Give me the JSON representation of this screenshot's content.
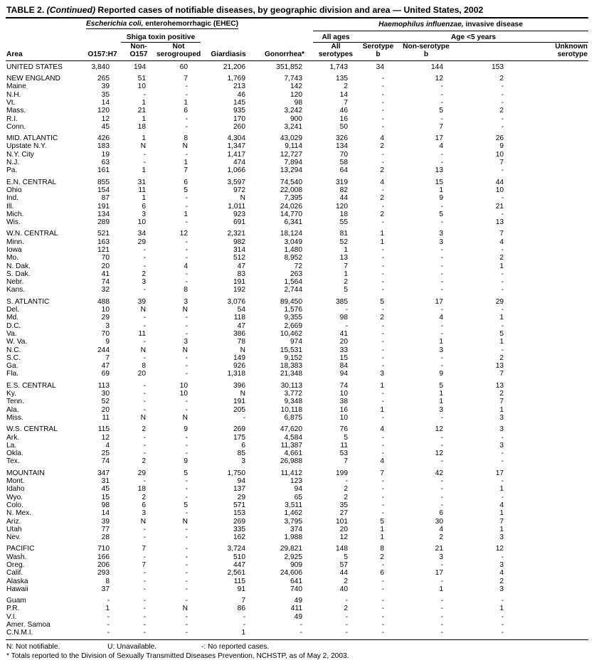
{
  "title": {
    "table_label": "TABLE 2.",
    "continued": " (Continued) ",
    "text": "Reported cases of notifiable diseases, by geographic division and area — United States, 2002"
  },
  "header": {
    "area": "Area",
    "ehec_group_italic": "Escherichia coli,",
    "ehec_group_rest": " enterohemorrhagic (EHEC)",
    "hinf_group_italic": "Haemophilus influenzae,",
    "hinf_group_rest": " invasive disease",
    "shiga": "Shiga toxin positive",
    "all_ages": "All ages",
    "age_under5": "Age <5 years",
    "cols": {
      "o157": "O157:H7",
      "non_o157": "Non-\nO157",
      "not_serogrouped": "Not\nserogrouped",
      "giardiasis": "Giardiasis",
      "gonorrhea": "Gonorrhea*",
      "all_serotypes": "All\nserotypes",
      "serotype_b": "Serotype\nb",
      "non_serotype_b": "Non-serotype\nb",
      "unknown_serotype": "Unknown\nserotype"
    }
  },
  "table": {
    "groups": [
      {
        "rows": [
          {
            "area": "UNITED STATES",
            "values": [
              "3,840",
              "194",
              "60",
              "21,206",
              "351,852",
              "1,743",
              "34",
              "144",
              "153"
            ]
          }
        ]
      },
      {
        "rows": [
          {
            "area": "NEW ENGLAND",
            "values": [
              "265",
              "51",
              "7",
              "1,769",
              "7,743",
              "135",
              "-",
              "12",
              "2"
            ]
          },
          {
            "area": "Maine",
            "values": [
              "39",
              "10",
              "-",
              "213",
              "142",
              "2",
              "-",
              "-",
              "-"
            ]
          },
          {
            "area": "N.H.",
            "values": [
              "35",
              "-",
              "-",
              "46",
              "120",
              "14",
              "-",
              "-",
              "-"
            ]
          },
          {
            "area": "Vt.",
            "values": [
              "14",
              "1",
              "1",
              "145",
              "98",
              "7",
              "-",
              "-",
              "-"
            ]
          },
          {
            "area": "Mass.",
            "values": [
              "120",
              "21",
              "6",
              "935",
              "3,242",
              "46",
              "-",
              "5",
              "2"
            ]
          },
          {
            "area": "R.I.",
            "values": [
              "12",
              "1",
              "-",
              "170",
              "900",
              "16",
              "-",
              "-",
              "-"
            ]
          },
          {
            "area": "Conn.",
            "values": [
              "45",
              "18",
              "-",
              "260",
              "3,241",
              "50",
              "-",
              "7",
              "-"
            ]
          }
        ]
      },
      {
        "rows": [
          {
            "area": "MID. ATLANTIC",
            "values": [
              "426",
              "1",
              "8",
              "4,304",
              "43,029",
              "326",
              "4",
              "17",
              "26"
            ]
          },
          {
            "area": "Upstate N.Y.",
            "values": [
              "183",
              "N",
              "N",
              "1,347",
              "9,114",
              "134",
              "2",
              "4",
              "9"
            ]
          },
          {
            "area": "N.Y. City",
            "values": [
              "19",
              "-",
              "-",
              "1,417",
              "12,727",
              "70",
              "-",
              "-",
              "10"
            ]
          },
          {
            "area": "N.J.",
            "values": [
              "63",
              "-",
              "1",
              "474",
              "7,894",
              "58",
              "-",
              "-",
              "7"
            ]
          },
          {
            "area": "Pa.",
            "values": [
              "161",
              "1",
              "7",
              "1,066",
              "13,294",
              "64",
              "2",
              "13",
              "-"
            ]
          }
        ]
      },
      {
        "rows": [
          {
            "area": "E.N. CENTRAL",
            "values": [
              "855",
              "31",
              "6",
              "3,597",
              "74,540",
              "319",
              "4",
              "15",
              "44"
            ]
          },
          {
            "area": "Ohio",
            "values": [
              "154",
              "11",
              "5",
              "972",
              "22,008",
              "82",
              "-",
              "1",
              "10"
            ]
          },
          {
            "area": "Ind.",
            "values": [
              "87",
              "1",
              "-",
              "N",
              "7,395",
              "44",
              "2",
              "9",
              "-"
            ]
          },
          {
            "area": "Ill.",
            "values": [
              "191",
              "6",
              "-",
              "1,011",
              "24,026",
              "120",
              "-",
              "-",
              "21"
            ]
          },
          {
            "area": "Mich.",
            "values": [
              "134",
              "3",
              "1",
              "923",
              "14,770",
              "18",
              "2",
              "5",
              "-"
            ]
          },
          {
            "area": "Wis.",
            "values": [
              "289",
              "10",
              "-",
              "691",
              "6,341",
              "55",
              "-",
              "-",
              "13"
            ]
          }
        ]
      },
      {
        "rows": [
          {
            "area": "W.N. CENTRAL",
            "values": [
              "521",
              "34",
              "12",
              "2,321",
              "18,124",
              "81",
              "1",
              "3",
              "7"
            ]
          },
          {
            "area": "Minn.",
            "values": [
              "163",
              "29",
              "-",
              "982",
              "3,049",
              "52",
              "1",
              "3",
              "4"
            ]
          },
          {
            "area": "Iowa",
            "values": [
              "121",
              "-",
              "-",
              "314",
              "1,480",
              "1",
              "-",
              "-",
              "-"
            ]
          },
          {
            "area": "Mo.",
            "values": [
              "70",
              "-",
              "-",
              "512",
              "8,952",
              "13",
              "-",
              "-",
              "2"
            ]
          },
          {
            "area": "N. Dak.",
            "values": [
              "20",
              "-",
              "4",
              "47",
              "72",
              "7",
              "-",
              "-",
              "1"
            ]
          },
          {
            "area": "S. Dak.",
            "values": [
              "41",
              "2",
              "-",
              "83",
              "263",
              "1",
              "-",
              "-",
              "-"
            ]
          },
          {
            "area": "Nebr.",
            "values": [
              "74",
              "3",
              "-",
              "191",
              "1,564",
              "2",
              "-",
              "-",
              "-"
            ]
          },
          {
            "area": "Kans.",
            "values": [
              "32",
              "-",
              "8",
              "192",
              "2,744",
              "5",
              "-",
              "-",
              "-"
            ]
          }
        ]
      },
      {
        "rows": [
          {
            "area": "S. ATLANTIC",
            "values": [
              "488",
              "39",
              "3",
              "3,076",
              "89,450",
              "385",
              "5",
              "17",
              "29"
            ]
          },
          {
            "area": "Del.",
            "values": [
              "10",
              "N",
              "N",
              "54",
              "1,576",
              "-",
              "-",
              "-",
              "-"
            ]
          },
          {
            "area": "Md.",
            "values": [
              "29",
              "-",
              "-",
              "118",
              "9,355",
              "98",
              "2",
              "4",
              "1"
            ]
          },
          {
            "area": "D.C.",
            "values": [
              "3",
              "-",
              "-",
              "47",
              "2,669",
              "-",
              "-",
              "-",
              "-"
            ]
          },
          {
            "area": "Va.",
            "values": [
              "70",
              "11",
              "-",
              "386",
              "10,462",
              "41",
              "-",
              "-",
              "5"
            ]
          },
          {
            "area": "W. Va.",
            "values": [
              "9",
              "-",
              "3",
              "78",
              "974",
              "20",
              "-",
              "1",
              "1"
            ]
          },
          {
            "area": "N.C.",
            "values": [
              "244",
              "N",
              "N",
              "N",
              "15,531",
              "33",
              "-",
              "3",
              "-"
            ]
          },
          {
            "area": "S.C.",
            "values": [
              "7",
              "-",
              "-",
              "149",
              "9,152",
              "15",
              "-",
              "-",
              "2"
            ]
          },
          {
            "area": "Ga.",
            "values": [
              "47",
              "8",
              "-",
              "926",
              "18,383",
              "84",
              "-",
              "-",
              "13"
            ]
          },
          {
            "area": "Fla.",
            "values": [
              "69",
              "20",
              "-",
              "1,318",
              "21,348",
              "94",
              "3",
              "9",
              "7"
            ]
          }
        ]
      },
      {
        "rows": [
          {
            "area": "E.S. CENTRAL",
            "values": [
              "113",
              "-",
              "10",
              "396",
              "30,113",
              "74",
              "1",
              "5",
              "13"
            ]
          },
          {
            "area": "Ky.",
            "values": [
              "30",
              "-",
              "10",
              "N",
              "3,772",
              "10",
              "-",
              "1",
              "2"
            ]
          },
          {
            "area": "Tenn.",
            "values": [
              "52",
              "-",
              "-",
              "191",
              "9,348",
              "38",
              "-",
              "1",
              "7"
            ]
          },
          {
            "area": "Ala.",
            "values": [
              "20",
              "-",
              "-",
              "205",
              "10,118",
              "16",
              "1",
              "3",
              "1"
            ]
          },
          {
            "area": "Miss.",
            "values": [
              "11",
              "N",
              "N",
              "-",
              "6,875",
              "10",
              "-",
              "-",
              "3"
            ]
          }
        ]
      },
      {
        "rows": [
          {
            "area": "W.S. CENTRAL",
            "values": [
              "115",
              "2",
              "9",
              "269",
              "47,620",
              "76",
              "4",
              "12",
              "3"
            ]
          },
          {
            "area": "Ark.",
            "values": [
              "12",
              "-",
              "-",
              "175",
              "4,584",
              "5",
              "-",
              "-",
              "-"
            ]
          },
          {
            "area": "La.",
            "values": [
              "4",
              "-",
              "-",
              "6",
              "11,387",
              "11",
              "-",
              "-",
              "3"
            ]
          },
          {
            "area": "Okla.",
            "values": [
              "25",
              "-",
              "-",
              "85",
              "4,661",
              "53",
              "-",
              "12",
              "-"
            ]
          },
          {
            "area": "Tex.",
            "values": [
              "74",
              "2",
              "9",
              "3",
              "26,988",
              "7",
              "4",
              "-",
              "-"
            ]
          }
        ]
      },
      {
        "rows": [
          {
            "area": "MOUNTAIN",
            "values": [
              "347",
              "29",
              "5",
              "1,750",
              "11,412",
              "199",
              "7",
              "42",
              "17"
            ]
          },
          {
            "area": "Mont.",
            "values": [
              "31",
              "-",
              "-",
              "94",
              "123",
              "-",
              "-",
              "-",
              "-"
            ]
          },
          {
            "area": "Idaho",
            "values": [
              "45",
              "18",
              "-",
              "137",
              "94",
              "2",
              "-",
              "-",
              "1"
            ]
          },
          {
            "area": "Wyo.",
            "values": [
              "15",
              "2",
              "-",
              "29",
              "65",
              "2",
              "-",
              "-",
              "-"
            ]
          },
          {
            "area": "Colo.",
            "values": [
              "98",
              "6",
              "5",
              "571",
              "3,511",
              "35",
              "-",
              "-",
              "4"
            ]
          },
          {
            "area": "N. Mex.",
            "values": [
              "14",
              "3",
              "-",
              "153",
              "1,462",
              "27",
              "-",
              "6",
              "1"
            ]
          },
          {
            "area": "Ariz.",
            "values": [
              "39",
              "N",
              "N",
              "269",
              "3,795",
              "101",
              "5",
              "30",
              "7"
            ]
          },
          {
            "area": "Utah",
            "values": [
              "77",
              "-",
              "-",
              "335",
              "374",
              "20",
              "1",
              "4",
              "1"
            ]
          },
          {
            "area": "Nev.",
            "values": [
              "28",
              "-",
              "-",
              "162",
              "1,988",
              "12",
              "1",
              "2",
              "3"
            ]
          }
        ]
      },
      {
        "rows": [
          {
            "area": "PACIFIC",
            "values": [
              "710",
              "7",
              "-",
              "3,724",
              "29,821",
              "148",
              "8",
              "21",
              "12"
            ]
          },
          {
            "area": "Wash.",
            "values": [
              "166",
              "-",
              "-",
              "510",
              "2,925",
              "5",
              "2",
              "3",
              "-"
            ]
          },
          {
            "area": "Oreg.",
            "values": [
              "206",
              "7",
              "-",
              "447",
              "909",
              "57",
              "-",
              "-",
              "3"
            ]
          },
          {
            "area": "Calif.",
            "values": [
              "293",
              "-",
              "-",
              "2,561",
              "24,606",
              "44",
              "6",
              "17",
              "4"
            ]
          },
          {
            "area": "Alaska",
            "values": [
              "8",
              "-",
              "-",
              "115",
              "641",
              "2",
              "-",
              "-",
              "2"
            ]
          },
          {
            "area": "Hawaii",
            "values": [
              "37",
              "-",
              "-",
              "91",
              "740",
              "40",
              "-",
              "1",
              "3"
            ]
          }
        ]
      },
      {
        "rows": [
          {
            "area": "Guam",
            "values": [
              "-",
              "-",
              "-",
              "7",
              "49",
              "-",
              "-",
              "-",
              "-"
            ]
          },
          {
            "area": "P.R.",
            "values": [
              "1",
              "-",
              "N",
              "86",
              "411",
              "2",
              "-",
              "-",
              "1"
            ]
          },
          {
            "area": "V.I.",
            "values": [
              "-",
              "-",
              "-",
              "-",
              "49",
              "-",
              "-",
              "-",
              "-"
            ]
          },
          {
            "area": "Amer. Samoa",
            "values": [
              "-",
              "-",
              "-",
              "-",
              "-",
              "-",
              "-",
              "-",
              "-"
            ]
          },
          {
            "area": "C.N.M.I.",
            "values": [
              "-",
              "-",
              "-",
              "1",
              "-",
              "-",
              "-",
              "-",
              "-"
            ]
          }
        ]
      }
    ]
  },
  "footnotes": {
    "n": "N: Not notifiable.",
    "u": "U: Unavailable.",
    "dash": "-: No reported cases.",
    "star": "* Totals reported to the Division of Sexually Transmitted Diseases Prevention, NCHSTP, as of May 2, 2003."
  }
}
